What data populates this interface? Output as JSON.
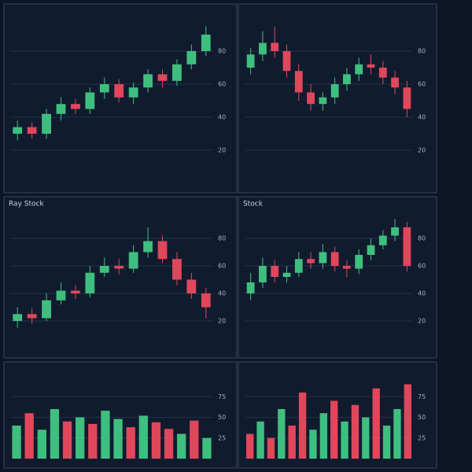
{
  "chart_data": [
    {
      "type": "candlestick",
      "up_color": "#3fbf7f",
      "down_color": "#e0475b",
      "ylim": [
        0,
        100
      ],
      "yticks": [
        20,
        40,
        60,
        80
      ],
      "grid": true,
      "open": [
        30,
        34,
        30,
        42,
        48,
        45,
        55,
        60,
        52,
        58,
        66,
        62,
        72,
        80
      ],
      "close": [
        34,
        30,
        42,
        48,
        45,
        55,
        60,
        52,
        58,
        66,
        62,
        72,
        80,
        90
      ],
      "high": [
        38,
        37,
        45,
        52,
        51,
        58,
        64,
        63,
        61,
        69,
        69,
        75,
        84,
        95
      ],
      "low": [
        26,
        27,
        27,
        38,
        42,
        42,
        51,
        49,
        48,
        55,
        58,
        59,
        69,
        77
      ]
    },
    {
      "type": "candlestick",
      "up_color": "#3fbf7f",
      "down_color": "#e0475b",
      "ylim": [
        0,
        100
      ],
      "yticks": [
        20,
        40,
        60,
        80
      ],
      "grid": true,
      "open": [
        70,
        78,
        85,
        80,
        68,
        55,
        48,
        52,
        60,
        66,
        72,
        70,
        64,
        58
      ],
      "close": [
        78,
        85,
        80,
        68,
        55,
        48,
        52,
        60,
        66,
        72,
        70,
        64,
        58,
        45
      ],
      "high": [
        82,
        92,
        95,
        84,
        72,
        60,
        55,
        64,
        70,
        76,
        78,
        74,
        68,
        62
      ],
      "low": [
        66,
        74,
        76,
        64,
        50,
        44,
        44,
        48,
        56,
        62,
        66,
        60,
        54,
        40
      ]
    },
    {
      "type": "candlestick",
      "title": "Ray Stock",
      "up_color": "#3fbf7f",
      "down_color": "#e0475b",
      "ylim": [
        0,
        100
      ],
      "yticks": [
        20,
        40,
        60,
        80
      ],
      "grid": true,
      "open": [
        20,
        25,
        22,
        35,
        42,
        40,
        55,
        60,
        58,
        70,
        78,
        65,
        50,
        40
      ],
      "close": [
        25,
        22,
        35,
        42,
        40,
        55,
        60,
        58,
        70,
        78,
        65,
        50,
        40,
        30
      ],
      "high": [
        30,
        29,
        40,
        48,
        46,
        60,
        66,
        65,
        75,
        88,
        82,
        70,
        55,
        44
      ],
      "low": [
        15,
        18,
        20,
        32,
        36,
        37,
        52,
        54,
        55,
        66,
        62,
        46,
        36,
        22
      ]
    },
    {
      "type": "candlestick",
      "title": "Stock",
      "up_color": "#3fbf7f",
      "down_color": "#e0475b",
      "ylim": [
        0,
        100
      ],
      "yticks": [
        20,
        40,
        60,
        80
      ],
      "grid": true,
      "open": [
        40,
        48,
        60,
        52,
        55,
        65,
        62,
        70,
        60,
        58,
        68,
        75,
        82,
        88
      ],
      "close": [
        48,
        60,
        52,
        55,
        65,
        62,
        70,
        60,
        58,
        68,
        75,
        82,
        88,
        60
      ],
      "high": [
        55,
        66,
        64,
        60,
        70,
        70,
        76,
        74,
        64,
        72,
        80,
        86,
        94,
        92
      ],
      "low": [
        35,
        44,
        48,
        48,
        52,
        58,
        58,
        56,
        52,
        54,
        64,
        72,
        78,
        56
      ]
    },
    {
      "type": "bar",
      "ylim": [
        0,
        100
      ],
      "yticks": [
        25,
        50,
        75
      ],
      "grid": true,
      "values": [
        40,
        55,
        35,
        60,
        45,
        50,
        42,
        58,
        48,
        38,
        52,
        44,
        36,
        30,
        46,
        25
      ],
      "colors": [
        "#3fbf7f",
        "#e0475b",
        "#3fbf7f",
        "#3fbf7f",
        "#e0475b",
        "#3fbf7f",
        "#e0475b",
        "#3fbf7f",
        "#3fbf7f",
        "#e0475b",
        "#3fbf7f",
        "#e0475b",
        "#e0475b",
        "#3fbf7f",
        "#e0475b",
        "#3fbf7f"
      ]
    },
    {
      "type": "bar",
      "ylim": [
        0,
        100
      ],
      "yticks": [
        25,
        50,
        75
      ],
      "grid": true,
      "values": [
        30,
        45,
        25,
        60,
        40,
        80,
        35,
        55,
        70,
        45,
        65,
        50,
        85,
        40,
        60,
        90
      ],
      "colors": [
        "#e0475b",
        "#3fbf7f",
        "#e0475b",
        "#3fbf7f",
        "#e0475b",
        "#e0475b",
        "#3fbf7f",
        "#3fbf7f",
        "#e0475b",
        "#3fbf7f",
        "#e0475b",
        "#3fbf7f",
        "#e0475b",
        "#3fbf7f",
        "#3fbf7f",
        "#e0475b"
      ]
    }
  ]
}
